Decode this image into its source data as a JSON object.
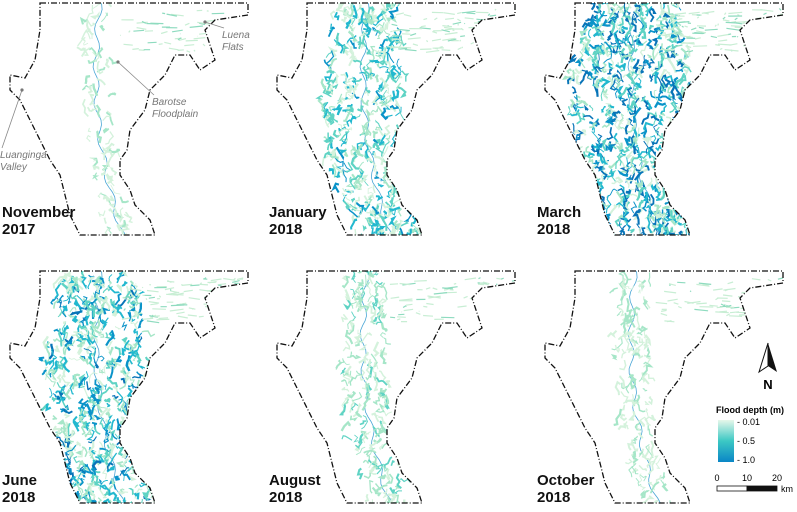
{
  "panels": [
    {
      "month": "November",
      "year": "2017"
    },
    {
      "month": "January",
      "year": "2018"
    },
    {
      "month": "March",
      "year": "2018"
    },
    {
      "month": "June",
      "year": "2018"
    },
    {
      "month": "August",
      "year": "2018"
    },
    {
      "month": "October",
      "year": "2018"
    }
  ],
  "annotations": [
    {
      "lines": [
        "Luena",
        "Flats"
      ]
    },
    {
      "lines": [
        "Barotse",
        "Floodplain"
      ]
    },
    {
      "lines": [
        "Luanginga",
        "Valley"
      ]
    }
  ],
  "north_arrow": "N",
  "legend": {
    "title": "Flood depth (m)",
    "ticks": [
      {
        "value": 0.01,
        "label": "- 0.01"
      },
      {
        "value": 0.5,
        "label": "- 0.5"
      },
      {
        "value": 1.0,
        "label": "- 1.0"
      }
    ]
  },
  "scale_bar": {
    "ticks": [
      0,
      10,
      20
    ],
    "unit": "km"
  }
}
